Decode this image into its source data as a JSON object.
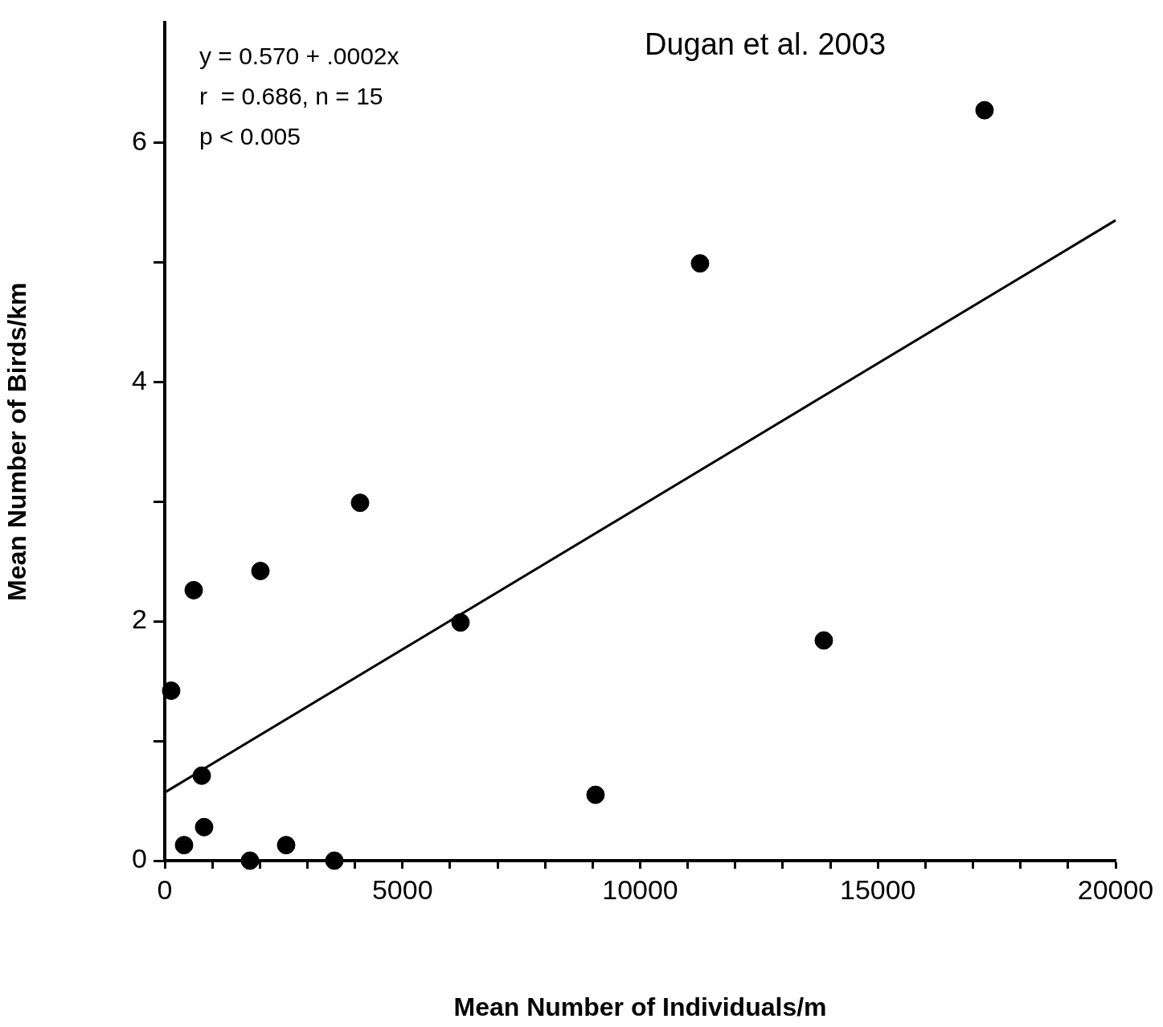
{
  "chart_data": {
    "type": "scatter",
    "xlabel": "Mean Number of Individuals/m",
    "ylabel": "Mean Number of Birds/km",
    "annotations": [
      "y = 0.570 + .0002x",
      "r  = 0.686, n = 15",
      "p < 0.005",
      "Dugan et al. 2003"
    ],
    "xlim": [
      0,
      20000
    ],
    "xticks": [
      0,
      {
        "value": 1000,
        "label": null
      },
      {
        "value": 2000,
        "label": null
      },
      {
        "value": 3000,
        "label": null
      },
      {
        "value": 4000,
        "label": null
      },
      5000,
      {
        "value": 6000,
        "label": null
      },
      {
        "value": 7000,
        "label": null
      },
      {
        "value": 8000,
        "label": null
      },
      {
        "value": 9000,
        "label": null
      },
      10000,
      {
        "value": 11000,
        "label": null
      },
      {
        "value": 12000,
        "label": null
      },
      {
        "value": 13000,
        "label": null
      },
      {
        "value": 14000,
        "label": null
      },
      15000,
      {
        "value": 16000,
        "label": null
      },
      {
        "value": 17000,
        "label": null
      },
      {
        "value": 18000,
        "label": null
      },
      {
        "value": 19000,
        "label": null
      },
      20000
    ],
    "ylim": [
      0,
      7
    ],
    "yticks": [
      0,
      {
        "value": 1,
        "label": null
      },
      2,
      {
        "value": 3,
        "label": null
      },
      4,
      {
        "value": 5,
        "label": null
      },
      6
    ],
    "grid": false,
    "legend": false,
    "series": [
      {
        "marker": "circle",
        "color": "#000000",
        "x": [
          135,
          406,
          609,
          778,
          828,
          1792,
          2012,
          2553,
          3567,
          4108,
          6221,
          9061,
          11259,
          13863,
          17244
        ],
        "values": [
          1.42,
          0.13,
          2.26,
          0.71,
          0.28,
          0,
          2.42,
          0.13,
          0,
          2.99,
          1.99,
          0.55,
          4.99,
          1.84,
          6.27
        ]
      },
      {
        "type": "line",
        "marker": "none",
        "color": "#000000",
        "x": [
          0,
          20000
        ],
        "values": [
          0.57,
          5.35
        ]
      }
    ]
  }
}
